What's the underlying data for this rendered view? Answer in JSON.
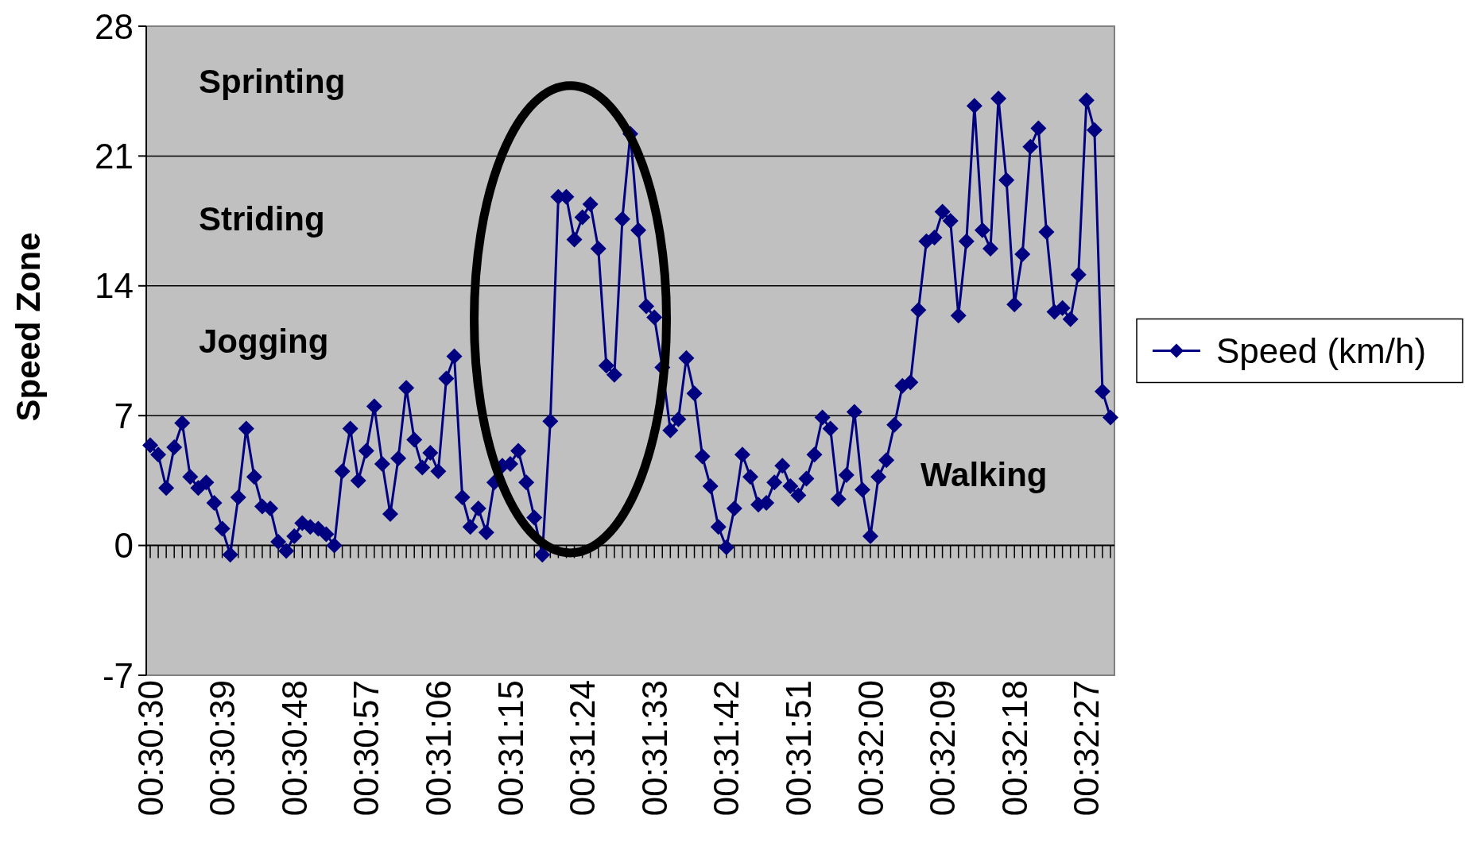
{
  "chart_data": {
    "type": "line",
    "ylabel": "Speed Zone",
    "categories": [
      "00:30:30",
      null,
      null,
      null,
      null,
      null,
      null,
      null,
      null,
      "00:30:39",
      null,
      null,
      null,
      null,
      null,
      null,
      null,
      null,
      "00:30:48",
      null,
      null,
      null,
      null,
      null,
      null,
      null,
      null,
      "00:30:57",
      null,
      null,
      null,
      null,
      null,
      null,
      null,
      null,
      "00:31:06",
      null,
      null,
      null,
      null,
      null,
      null,
      null,
      null,
      "00:31:15",
      null,
      null,
      null,
      null,
      null,
      null,
      null,
      null,
      "00:31:24",
      null,
      null,
      null,
      null,
      null,
      null,
      null,
      null,
      "00:31:33",
      null,
      null,
      null,
      null,
      null,
      null,
      null,
      null,
      "00:31:42",
      null,
      null,
      null,
      null,
      null,
      null,
      null,
      null,
      "00:31:51",
      null,
      null,
      null,
      null,
      null,
      null,
      null,
      null,
      "00:32:00",
      null,
      null,
      null,
      null,
      null,
      null,
      null,
      null,
      "00:32:09",
      null,
      null,
      null,
      null,
      null,
      null,
      null,
      null,
      "00:32:18",
      null,
      null,
      null,
      null,
      null,
      null,
      null,
      null,
      "00:32:27",
      null,
      null,
      null
    ],
    "series": [
      {
        "name": "Speed (km/h)",
        "color": "#000080",
        "values": [
          5.4,
          4.9,
          3.1,
          5.3,
          6.6,
          3.7,
          3.1,
          3.4,
          2.3,
          0.9,
          -0.5,
          2.6,
          6.3,
          3.7,
          2.1,
          2.0,
          0.2,
          -0.3,
          0.5,
          1.2,
          1.0,
          0.9,
          0.6,
          0.0,
          4.0,
          6.3,
          3.5,
          5.1,
          7.5,
          4.4,
          1.7,
          4.7,
          8.5,
          5.7,
          4.2,
          5.0,
          4.0,
          9.0,
          10.2,
          2.6,
          1.0,
          2.0,
          0.7,
          3.4,
          4.3,
          4.4,
          5.1,
          3.4,
          1.5,
          -0.5,
          6.7,
          18.8,
          18.8,
          16.5,
          17.7,
          18.4,
          16.0,
          9.7,
          9.2,
          17.6,
          22.2,
          17.0,
          12.9,
          12.3,
          9.6,
          6.2,
          6.8,
          10.1,
          8.2,
          4.8,
          3.2,
          1.0,
          -0.1,
          2.0,
          4.9,
          3.7,
          2.2,
          2.3,
          3.4,
          4.3,
          3.2,
          2.7,
          3.6,
          4.9,
          6.9,
          6.3,
          2.5,
          3.8,
          7.2,
          3.0,
          0.5,
          3.7,
          4.6,
          6.5,
          8.6,
          8.8,
          12.7,
          16.4,
          16.6,
          18.0,
          17.5,
          12.4,
          16.4,
          23.7,
          17.0,
          16.0,
          24.1,
          19.7,
          13.0,
          15.7,
          21.5,
          22.5,
          16.9,
          12.6,
          12.8,
          12.2,
          14.6,
          24.0,
          22.4,
          8.3,
          6.9
        ]
      }
    ],
    "ylim": [
      -7,
      28
    ],
    "yticks": [
      -7,
      0,
      7,
      14,
      21,
      28
    ],
    "grid": "y",
    "legend": "right",
    "marker": "diamond",
    "line_style": "solid",
    "annotations": [
      "Sprinting",
      "Striding",
      "Jogging",
      "Walking"
    ]
  }
}
